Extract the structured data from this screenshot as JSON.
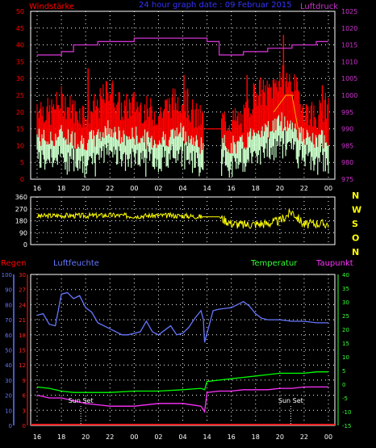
{
  "header": {
    "wind_title": "Windstärke",
    "graph_title": "24 hour graph date : 09 Februar 2015",
    "pressure_title": "Luftdruck"
  },
  "panel3": {
    "regen_label": "Regen",
    "humidity_label": "Luftfeuchte",
    "temperature_label": "Temperatur",
    "dewpoint_label": "Taupunkt",
    "sunset_label": "Sun Set"
  },
  "colors": {
    "wind_gust": "#ff0000",
    "wind_avg": "#ccffcc",
    "wind_avg_dark": "#00cc00",
    "pressure": "#cc33cc",
    "direction": "#ffff00",
    "humidity": "#6677ff",
    "temperature": "#00ff00",
    "dewpoint": "#ff33ff",
    "rain": "#ff2222",
    "hum_axis": "#6677ff",
    "regen_axis": "#ff2222",
    "temp_axis": "#33ff33",
    "time_axis": "#ffffff"
  },
  "time_axis_labels": [
    "16",
    "18",
    "20",
    "22",
    "00",
    "02",
    "04",
    "14",
    "16",
    "18",
    "20",
    "22",
    "00"
  ],
  "chart_data": [
    {
      "type": "line",
      "title": "24 hour graph date : 09 Februar 2015",
      "ylabel": "Windstärke",
      "y2label": "Luftdruck",
      "ylim": [
        0,
        50
      ],
      "y2lim": [
        975,
        1025
      ],
      "x_ticks": [
        "16",
        "18",
        "20",
        "22",
        "00",
        "02",
        "04",
        "14",
        "16",
        "18",
        "20",
        "22",
        "00"
      ],
      "yticks": [
        0,
        5,
        10,
        15,
        20,
        25,
        30,
        35,
        40,
        45,
        50
      ],
      "y2ticks": [
        975,
        980,
        985,
        990,
        995,
        1000,
        1005,
        1010,
        1015,
        1020,
        1025
      ],
      "grid": true,
      "series": [
        {
          "name": "Windstärke",
          "x": [
            0,
            1,
            2,
            3,
            4,
            5,
            6,
            7,
            8,
            9,
            10,
            11,
            12,
            13,
            14,
            15,
            16,
            17,
            18,
            19,
            20,
            21,
            22,
            23,
            24
          ],
          "values": [
            20,
            17,
            21,
            18,
            17,
            19,
            25,
            18,
            20,
            18,
            17,
            20,
            22,
            16,
            15,
            15,
            15,
            15,
            24,
            23,
            28,
            26,
            19,
            16,
            20
          ]
        },
        {
          "name": "Luftdruck",
          "x": [
            0,
            1,
            2,
            3,
            4,
            5,
            6,
            7,
            8,
            9,
            10,
            11,
            12,
            13,
            14,
            15,
            16,
            17,
            18,
            19,
            20,
            21,
            22,
            23,
            24
          ],
          "values": [
            1012,
            1012,
            1013,
            1015,
            1015,
            1016,
            1016,
            1016,
            1017,
            1017,
            1017,
            1017,
            1017,
            1017,
            1016,
            1012,
            1012,
            1013,
            1013,
            1014,
            1014,
            1015,
            1015,
            1016,
            1016
          ]
        }
      ]
    },
    {
      "type": "line",
      "ylim": [
        0,
        360
      ],
      "yticks": [
        0,
        90,
        180,
        270,
        360
      ],
      "y2ticks": [
        "N",
        "W",
        "S",
        "O",
        "N"
      ],
      "x_ticks": [
        "16",
        "18",
        "20",
        "22",
        "00",
        "02",
        "04",
        "14",
        "16",
        "18",
        "20",
        "22",
        "00"
      ],
      "grid": true,
      "series": [
        {
          "x": [
            0,
            2,
            4,
            6,
            8,
            10,
            12,
            13.6,
            15,
            16,
            17,
            18,
            19,
            20,
            21,
            22,
            23,
            24
          ],
          "values": [
            215,
            220,
            218,
            222,
            216,
            220,
            218,
            210,
            210,
            160,
            150,
            155,
            160,
            180,
            250,
            150,
            160,
            155
          ]
        }
      ]
    },
    {
      "type": "line",
      "ylim": [
        0,
        100
      ],
      "y_regen_lim": [
        0,
        30
      ],
      "y2lim": [
        -15,
        40
      ],
      "humidity_ticks": [
        0,
        10,
        20,
        30,
        40,
        50,
        60,
        70,
        80,
        90,
        100
      ],
      "regen_ticks": [
        0,
        3,
        6,
        9,
        12,
        15,
        18,
        21,
        24,
        27,
        30
      ],
      "temp_ticks": [
        -15,
        -10,
        -5,
        0,
        5,
        10,
        15,
        20,
        25,
        30,
        35,
        40
      ],
      "x_ticks": [
        "16",
        "18",
        "20",
        "22",
        "00",
        "02",
        "04",
        "14",
        "16",
        "18",
        "20",
        "22",
        "00"
      ],
      "annotations": [
        "Sun Set",
        "Sun Set"
      ],
      "grid": true,
      "series": [
        {
          "name": "Luftfeuchte",
          "x": [
            0,
            0.5,
            1,
            1.5,
            2,
            2.5,
            3,
            3.5,
            4,
            4.5,
            5,
            5.5,
            6,
            6.5,
            7,
            7.5,
            8,
            8.5,
            9,
            9.5,
            10,
            10.5,
            11,
            11.5,
            12,
            12.5,
            13,
            13.5,
            13.7,
            13.8,
            14.5,
            15,
            16,
            16.5,
            17,
            17.5,
            18,
            18.5,
            19,
            20,
            21,
            22,
            23,
            24
          ],
          "values": [
            73,
            74,
            67,
            66,
            87,
            88,
            84,
            86,
            78,
            75,
            68,
            66,
            64,
            62,
            60,
            60,
            61,
            62,
            69,
            62,
            60,
            63,
            66,
            60,
            61,
            65,
            71,
            76,
            70,
            55,
            76,
            77,
            78,
            80,
            82,
            79,
            74,
            71,
            70,
            70,
            69,
            69,
            68,
            68
          ]
        },
        {
          "name": "Temperatur",
          "x": [
            0,
            1,
            2,
            3,
            4,
            6,
            8,
            10,
            12,
            13.5,
            13.8,
            14,
            15,
            16,
            17,
            18,
            19,
            20,
            21,
            22,
            23,
            24
          ],
          "values": [
            -1,
            -1.5,
            -2.5,
            -3,
            -3,
            -3,
            -2.5,
            -2.5,
            -2,
            -1.5,
            -2,
            1,
            1.5,
            2,
            2.5,
            3,
            3.5,
            4,
            4,
            4,
            4.5,
            4.5
          ]
        },
        {
          "name": "Taupunkt",
          "x": [
            0,
            1,
            2,
            3,
            4,
            6,
            8,
            10,
            12,
            13.5,
            13.8,
            14,
            15,
            16,
            17,
            18,
            19,
            20,
            21,
            22,
            23,
            24
          ],
          "values": [
            -4,
            -5,
            -5,
            -6,
            -7,
            -8,
            -8,
            -7,
            -7,
            -8,
            -10,
            -3,
            -2.5,
            -2.5,
            -2,
            -2,
            -2,
            -1.5,
            -1.5,
            -1,
            -1,
            -1
          ]
        },
        {
          "name": "Regen",
          "x": [
            0,
            24
          ],
          "values": [
            0,
            0
          ]
        }
      ]
    }
  ]
}
